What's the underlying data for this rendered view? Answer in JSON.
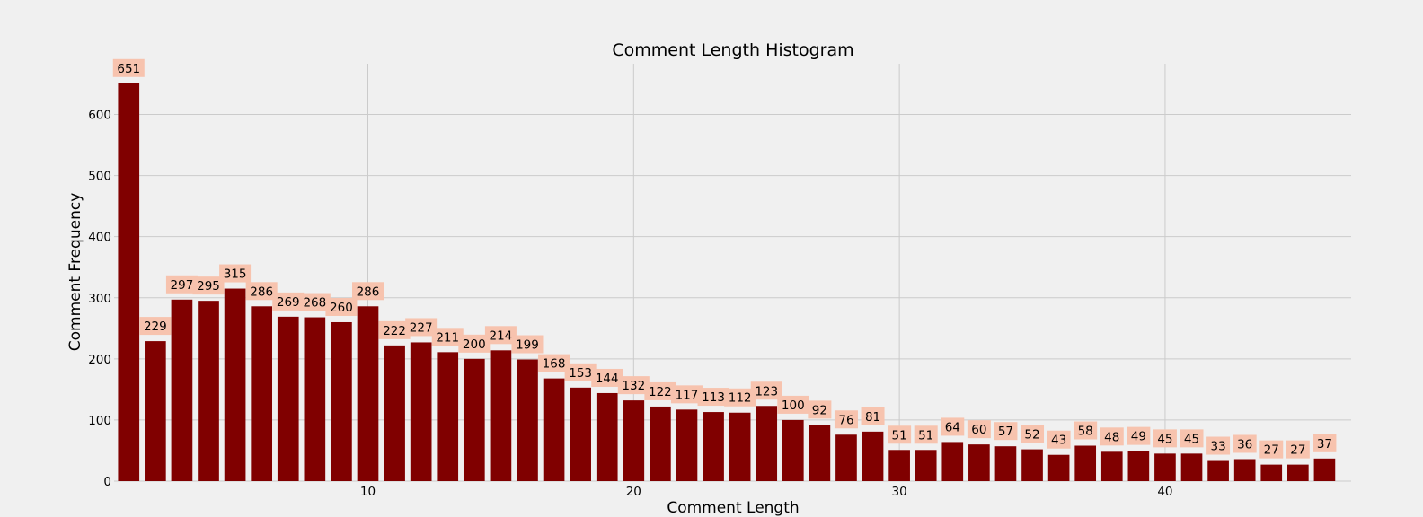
{
  "chart_data": {
    "type": "bar",
    "title": "Comment Length Histogram",
    "xlabel": "Comment Length",
    "ylabel": "Comment Frequency",
    "x": [
      1,
      2,
      3,
      4,
      5,
      6,
      7,
      8,
      9,
      10,
      11,
      12,
      13,
      14,
      15,
      16,
      17,
      18,
      19,
      20,
      21,
      22,
      23,
      24,
      25,
      26,
      27,
      28,
      29,
      30,
      31,
      32,
      33,
      34,
      35,
      36,
      37,
      38,
      39,
      40,
      41,
      42,
      43,
      44,
      45,
      46
    ],
    "values": [
      651,
      229,
      297,
      295,
      315,
      286,
      269,
      268,
      260,
      286,
      222,
      227,
      211,
      200,
      214,
      199,
      168,
      153,
      144,
      132,
      122,
      117,
      113,
      112,
      123,
      100,
      92,
      76,
      81,
      51,
      51,
      64,
      60,
      57,
      52,
      43,
      58,
      48,
      49,
      45,
      45,
      33,
      36,
      27,
      27,
      37
    ],
    "xticks": [
      10,
      20,
      30,
      40
    ],
    "yticks": [
      0,
      100,
      200,
      300,
      400,
      500,
      600
    ],
    "xlim": [
      0.45,
      47.0
    ],
    "ylim": [
      0,
      683
    ],
    "grid": true,
    "bar_color": "#800000",
    "label_box_color": "#f7c3ae",
    "background_color": "#f0f0f0"
  }
}
